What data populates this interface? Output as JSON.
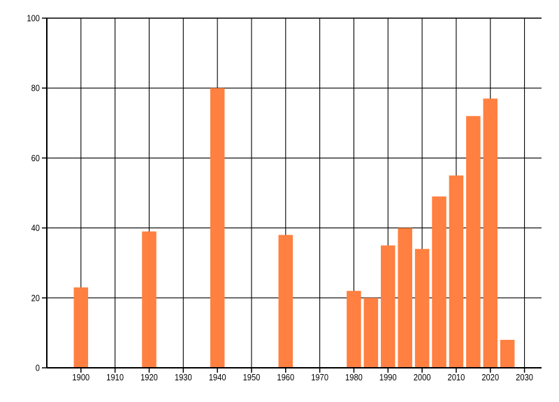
{
  "chart_data": {
    "type": "bar",
    "x": [
      1900,
      1920,
      1940,
      1960,
      1980,
      1985,
      1990,
      1995,
      2000,
      2005,
      2010,
      2015,
      2020,
      2025
    ],
    "values": [
      23,
      39,
      80,
      38,
      22,
      20,
      35,
      40,
      34,
      49,
      55,
      72,
      77,
      8
    ],
    "title": "",
    "xlabel": "",
    "ylabel": "",
    "xlim": [
      1890,
      2035
    ],
    "ylim": [
      0,
      100
    ],
    "x_ticks": [
      1900,
      1910,
      1920,
      1930,
      1940,
      1950,
      1960,
      1970,
      1980,
      1990,
      2000,
      2010,
      2020,
      2030
    ],
    "y_ticks": [
      0,
      20,
      40,
      60,
      80,
      100
    ],
    "grid": true,
    "legend": false,
    "bar_width_years": 4.2,
    "colors": {
      "bar": "#FF8040",
      "grid": "#000000",
      "axis": "#000000",
      "text": "#000000",
      "background": "#FFFFFF"
    }
  }
}
